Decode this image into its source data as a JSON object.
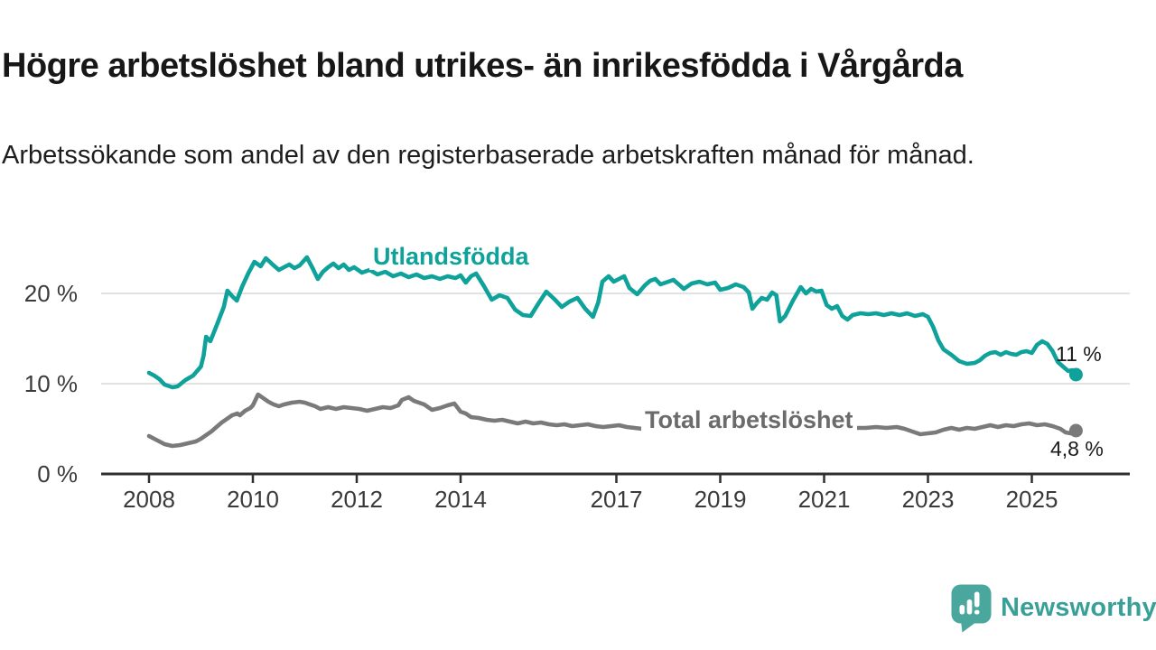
{
  "header": {
    "title": "Högre arbetslöshet bland utrikes- än inrikesfödda i Vårgårda",
    "subtitle": "Arbetssökande som andel av den registerbaserade arbetskraften månad för månad."
  },
  "branding": {
    "wordmark": "Newsworthy",
    "icon": "newsworthy-speech-bubble-bar-chart-icon",
    "icon_color": "#4aa79e",
    "text_color": "#38a098"
  },
  "colors": {
    "series_foreign_born": "#0ea29a",
    "series_total": "#7a7a7a",
    "gridline": "#d9d9d9",
    "axis": "#2f2f2f",
    "tick_text": "#3a3a3a"
  },
  "chart_data": {
    "type": "line",
    "title": "Högre arbetslöshet bland utrikes- än inrikesfödda i Vårgårda",
    "xlabel": "",
    "ylabel": "",
    "x_unit": "decimal_year",
    "xlim": [
      2007.9,
      2026.0
    ],
    "ylim": [
      0,
      25.5
    ],
    "grid": "horizontal-only",
    "legend_position": "inline-labels",
    "yticks": [
      {
        "value": 0,
        "label": "0 %"
      },
      {
        "value": 10,
        "label": "10 %"
      },
      {
        "value": 20,
        "label": "20 %"
      }
    ],
    "grid_yticks": [
      10,
      20
    ],
    "xticks": [
      {
        "value": 2008,
        "label": "2008"
      },
      {
        "value": 2010,
        "label": "2010"
      },
      {
        "value": 2012,
        "label": "2012"
      },
      {
        "value": 2014,
        "label": "2014"
      },
      {
        "value": 2017,
        "label": "2017"
      },
      {
        "value": 2019,
        "label": "2019"
      },
      {
        "value": 2021,
        "label": "2021"
      },
      {
        "value": 2023,
        "label": "2023"
      },
      {
        "value": 2025,
        "label": "2025"
      }
    ],
    "series": [
      {
        "name": "Utlandsfödda",
        "color": "#0ea29a",
        "end_label": "11 %",
        "end_value": 11.0,
        "points": [
          [
            2008.0,
            11.2
          ],
          [
            2008.1,
            10.9
          ],
          [
            2008.2,
            10.5
          ],
          [
            2008.3,
            9.9
          ],
          [
            2008.45,
            9.6
          ],
          [
            2008.55,
            9.7
          ],
          [
            2008.7,
            10.4
          ],
          [
            2008.85,
            10.9
          ],
          [
            2009.0,
            11.9
          ],
          [
            2009.05,
            13.1
          ],
          [
            2009.1,
            15.2
          ],
          [
            2009.18,
            14.7
          ],
          [
            2009.3,
            16.4
          ],
          [
            2009.44,
            18.5
          ],
          [
            2009.51,
            20.3
          ],
          [
            2009.6,
            19.7
          ],
          [
            2009.69,
            19.2
          ],
          [
            2009.79,
            20.7
          ],
          [
            2009.91,
            22.2
          ],
          [
            2010.03,
            23.5
          ],
          [
            2010.15,
            23.0
          ],
          [
            2010.25,
            23.9
          ],
          [
            2010.4,
            23.1
          ],
          [
            2010.5,
            22.6
          ],
          [
            2010.6,
            22.9
          ],
          [
            2010.7,
            23.2
          ],
          [
            2010.8,
            22.8
          ],
          [
            2010.9,
            23.1
          ],
          [
            2011.04,
            24.0
          ],
          [
            2011.15,
            22.8
          ],
          [
            2011.25,
            21.6
          ],
          [
            2011.35,
            22.4
          ],
          [
            2011.45,
            22.9
          ],
          [
            2011.55,
            23.3
          ],
          [
            2011.65,
            22.8
          ],
          [
            2011.75,
            23.2
          ],
          [
            2011.85,
            22.6
          ],
          [
            2011.95,
            22.9
          ],
          [
            2012.1,
            22.3
          ],
          [
            2012.25,
            22.6
          ],
          [
            2012.4,
            22.1
          ],
          [
            2012.55,
            22.4
          ],
          [
            2012.7,
            21.9
          ],
          [
            2012.85,
            22.2
          ],
          [
            2013.0,
            21.8
          ],
          [
            2013.15,
            22.1
          ],
          [
            2013.3,
            21.7
          ],
          [
            2013.45,
            21.9
          ],
          [
            2013.6,
            21.6
          ],
          [
            2013.75,
            21.9
          ],
          [
            2013.9,
            21.7
          ],
          [
            2014.0,
            22.0
          ],
          [
            2014.1,
            21.2
          ],
          [
            2014.2,
            21.9
          ],
          [
            2014.3,
            22.2
          ],
          [
            2014.45,
            20.8
          ],
          [
            2014.6,
            19.3
          ],
          [
            2014.75,
            19.8
          ],
          [
            2014.9,
            19.5
          ],
          [
            2015.05,
            18.2
          ],
          [
            2015.2,
            17.6
          ],
          [
            2015.35,
            17.5
          ],
          [
            2015.5,
            18.9
          ],
          [
            2015.65,
            20.2
          ],
          [
            2015.8,
            19.4
          ],
          [
            2015.95,
            18.5
          ],
          [
            2016.1,
            19.1
          ],
          [
            2016.25,
            19.5
          ],
          [
            2016.4,
            18.3
          ],
          [
            2016.55,
            17.4
          ],
          [
            2016.65,
            19.0
          ],
          [
            2016.73,
            21.3
          ],
          [
            2016.85,
            21.9
          ],
          [
            2016.95,
            21.3
          ],
          [
            2017.05,
            21.6
          ],
          [
            2017.15,
            21.9
          ],
          [
            2017.25,
            20.6
          ],
          [
            2017.4,
            19.9
          ],
          [
            2017.55,
            20.9
          ],
          [
            2017.65,
            21.4
          ],
          [
            2017.75,
            21.6
          ],
          [
            2017.85,
            21.0
          ],
          [
            2017.95,
            21.2
          ],
          [
            2018.1,
            21.5
          ],
          [
            2018.2,
            21.0
          ],
          [
            2018.3,
            20.5
          ],
          [
            2018.45,
            21.1
          ],
          [
            2018.6,
            21.3
          ],
          [
            2018.75,
            21.0
          ],
          [
            2018.9,
            21.2
          ],
          [
            2019.0,
            20.4
          ],
          [
            2019.15,
            20.6
          ],
          [
            2019.3,
            21.0
          ],
          [
            2019.45,
            20.7
          ],
          [
            2019.55,
            20.1
          ],
          [
            2019.62,
            18.3
          ],
          [
            2019.7,
            18.9
          ],
          [
            2019.8,
            19.5
          ],
          [
            2019.9,
            19.3
          ],
          [
            2020.0,
            20.1
          ],
          [
            2020.08,
            19.8
          ],
          [
            2020.15,
            16.9
          ],
          [
            2020.25,
            17.5
          ],
          [
            2020.4,
            19.2
          ],
          [
            2020.55,
            20.7
          ],
          [
            2020.65,
            20.0
          ],
          [
            2020.75,
            20.5
          ],
          [
            2020.85,
            20.2
          ],
          [
            2020.95,
            20.3
          ],
          [
            2021.05,
            18.7
          ],
          [
            2021.15,
            18.3
          ],
          [
            2021.25,
            18.6
          ],
          [
            2021.35,
            17.5
          ],
          [
            2021.45,
            17.1
          ],
          [
            2021.55,
            17.6
          ],
          [
            2021.7,
            17.8
          ],
          [
            2021.85,
            17.7
          ],
          [
            2022.0,
            17.8
          ],
          [
            2022.15,
            17.6
          ],
          [
            2022.3,
            17.8
          ],
          [
            2022.45,
            17.6
          ],
          [
            2022.6,
            17.8
          ],
          [
            2022.75,
            17.5
          ],
          [
            2022.9,
            17.7
          ],
          [
            2023.0,
            17.4
          ],
          [
            2023.1,
            16.3
          ],
          [
            2023.2,
            14.8
          ],
          [
            2023.3,
            13.8
          ],
          [
            2023.45,
            13.2
          ],
          [
            2023.6,
            12.5
          ],
          [
            2023.75,
            12.2
          ],
          [
            2023.9,
            12.3
          ],
          [
            2024.0,
            12.6
          ],
          [
            2024.1,
            13.1
          ],
          [
            2024.2,
            13.4
          ],
          [
            2024.3,
            13.5
          ],
          [
            2024.4,
            13.2
          ],
          [
            2024.5,
            13.5
          ],
          [
            2024.6,
            13.3
          ],
          [
            2024.7,
            13.2
          ],
          [
            2024.8,
            13.5
          ],
          [
            2024.9,
            13.6
          ],
          [
            2025.0,
            13.4
          ],
          [
            2025.1,
            14.3
          ],
          [
            2025.2,
            14.7
          ],
          [
            2025.3,
            14.4
          ],
          [
            2025.4,
            13.6
          ],
          [
            2025.5,
            12.4
          ],
          [
            2025.6,
            11.9
          ],
          [
            2025.7,
            11.4
          ],
          [
            2025.78,
            11.5
          ],
          [
            2025.85,
            11.0
          ]
        ]
      },
      {
        "name": "Total arbetslöshet",
        "color": "#7a7a7a",
        "end_label": "4,8 %",
        "end_value": 4.8,
        "points": [
          [
            2008.0,
            4.2
          ],
          [
            2008.1,
            3.9
          ],
          [
            2008.2,
            3.6
          ],
          [
            2008.3,
            3.3
          ],
          [
            2008.45,
            3.1
          ],
          [
            2008.6,
            3.2
          ],
          [
            2008.75,
            3.4
          ],
          [
            2008.9,
            3.6
          ],
          [
            2009.0,
            3.9
          ],
          [
            2009.1,
            4.3
          ],
          [
            2009.2,
            4.7
          ],
          [
            2009.3,
            5.2
          ],
          [
            2009.4,
            5.7
          ],
          [
            2009.5,
            6.1
          ],
          [
            2009.6,
            6.5
          ],
          [
            2009.7,
            6.7
          ],
          [
            2009.75,
            6.5
          ],
          [
            2009.85,
            7.0
          ],
          [
            2009.95,
            7.3
          ],
          [
            2010.0,
            7.6
          ],
          [
            2010.05,
            8.2
          ],
          [
            2010.1,
            8.8
          ],
          [
            2010.2,
            8.4
          ],
          [
            2010.3,
            8.0
          ],
          [
            2010.4,
            7.7
          ],
          [
            2010.5,
            7.5
          ],
          [
            2010.6,
            7.7
          ],
          [
            2010.75,
            7.9
          ],
          [
            2010.9,
            8.0
          ],
          [
            2011.0,
            7.9
          ],
          [
            2011.1,
            7.7
          ],
          [
            2011.2,
            7.5
          ],
          [
            2011.3,
            7.2
          ],
          [
            2011.45,
            7.4
          ],
          [
            2011.6,
            7.2
          ],
          [
            2011.75,
            7.4
          ],
          [
            2011.9,
            7.3
          ],
          [
            2012.05,
            7.2
          ],
          [
            2012.2,
            7.0
          ],
          [
            2012.35,
            7.2
          ],
          [
            2012.5,
            7.4
          ],
          [
            2012.65,
            7.3
          ],
          [
            2012.8,
            7.6
          ],
          [
            2012.87,
            8.2
          ],
          [
            2013.0,
            8.5
          ],
          [
            2013.1,
            8.1
          ],
          [
            2013.3,
            7.7
          ],
          [
            2013.45,
            7.1
          ],
          [
            2013.6,
            7.3
          ],
          [
            2013.75,
            7.6
          ],
          [
            2013.88,
            7.8
          ],
          [
            2014.0,
            6.9
          ],
          [
            2014.1,
            6.7
          ],
          [
            2014.2,
            6.3
          ],
          [
            2014.35,
            6.2
          ],
          [
            2014.5,
            6.0
          ],
          [
            2014.65,
            5.9
          ],
          [
            2014.8,
            6.0
          ],
          [
            2014.95,
            5.8
          ],
          [
            2015.1,
            5.6
          ],
          [
            2015.25,
            5.8
          ],
          [
            2015.4,
            5.6
          ],
          [
            2015.55,
            5.7
          ],
          [
            2015.7,
            5.5
          ],
          [
            2015.85,
            5.4
          ],
          [
            2016.0,
            5.5
          ],
          [
            2016.15,
            5.3
          ],
          [
            2016.3,
            5.4
          ],
          [
            2016.45,
            5.5
          ],
          [
            2016.6,
            5.3
          ],
          [
            2016.75,
            5.2
          ],
          [
            2016.9,
            5.3
          ],
          [
            2017.05,
            5.4
          ],
          [
            2017.2,
            5.2
          ],
          [
            2017.35,
            5.1
          ],
          [
            2017.5,
            5.0
          ],
          [
            2017.65,
            4.9
          ],
          [
            2017.8,
            4.8
          ],
          [
            2018.0,
            4.9
          ],
          [
            2018.2,
            5.0
          ],
          [
            2018.4,
            4.9
          ],
          [
            2018.6,
            4.8
          ],
          [
            2018.8,
            4.9
          ],
          [
            2019.0,
            5.0
          ],
          [
            2019.2,
            4.9
          ],
          [
            2019.4,
            4.8
          ],
          [
            2019.6,
            4.9
          ],
          [
            2019.8,
            5.0
          ],
          [
            2020.0,
            5.2
          ],
          [
            2020.2,
            5.6
          ],
          [
            2020.4,
            5.7
          ],
          [
            2020.6,
            5.6
          ],
          [
            2020.8,
            5.5
          ],
          [
            2021.0,
            5.4
          ],
          [
            2021.2,
            5.3
          ],
          [
            2021.4,
            5.2
          ],
          [
            2021.6,
            5.1
          ],
          [
            2021.8,
            5.1
          ],
          [
            2022.0,
            5.2
          ],
          [
            2022.2,
            5.1
          ],
          [
            2022.4,
            5.2
          ],
          [
            2022.55,
            5.0
          ],
          [
            2022.7,
            4.7
          ],
          [
            2022.85,
            4.4
          ],
          [
            2023.0,
            4.5
          ],
          [
            2023.15,
            4.6
          ],
          [
            2023.3,
            4.9
          ],
          [
            2023.45,
            5.1
          ],
          [
            2023.6,
            4.9
          ],
          [
            2023.75,
            5.1
          ],
          [
            2023.9,
            5.0
          ],
          [
            2024.05,
            5.2
          ],
          [
            2024.2,
            5.4
          ],
          [
            2024.35,
            5.2
          ],
          [
            2024.5,
            5.4
          ],
          [
            2024.65,
            5.3
          ],
          [
            2024.8,
            5.5
          ],
          [
            2024.95,
            5.6
          ],
          [
            2025.1,
            5.4
          ],
          [
            2025.25,
            5.5
          ],
          [
            2025.4,
            5.3
          ],
          [
            2025.55,
            5.0
          ],
          [
            2025.65,
            4.6
          ],
          [
            2025.75,
            4.5
          ],
          [
            2025.85,
            4.8
          ]
        ]
      }
    ]
  }
}
